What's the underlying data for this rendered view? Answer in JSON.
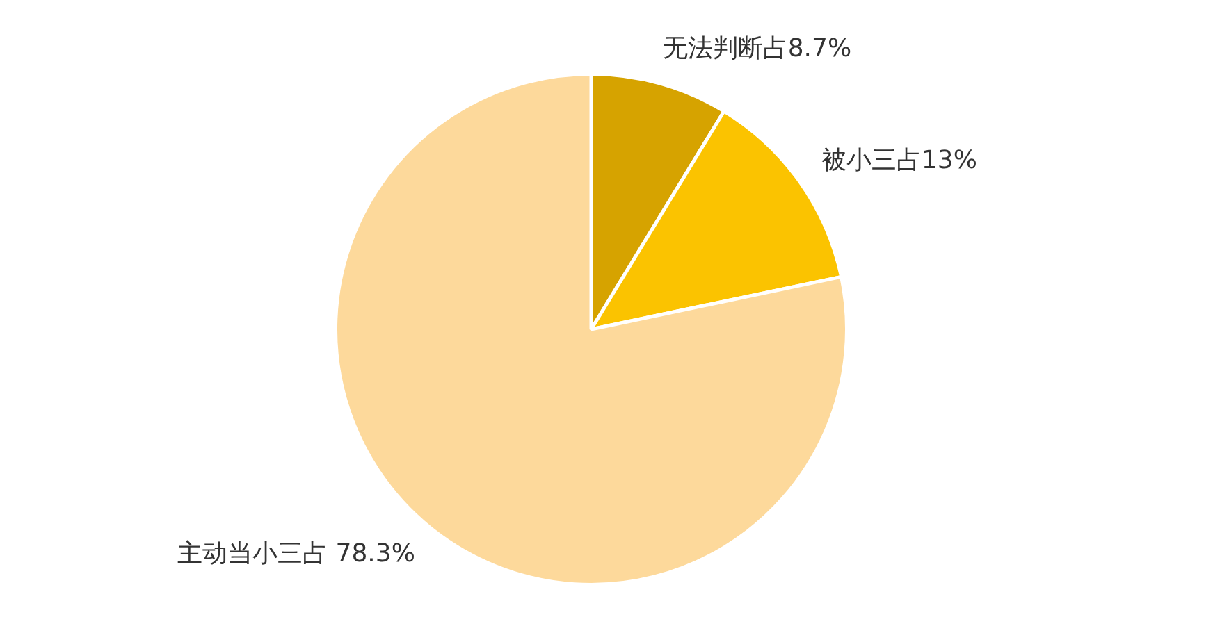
{
  "chart_data": {
    "type": "pie",
    "categories": [
      "无法判断占",
      "被小三占",
      "主动当小三占"
    ],
    "values": [
      8.7,
      13,
      78.3
    ],
    "value_labels": [
      "8.7%",
      "13%",
      "78.3%"
    ],
    "colors": [
      "#d6a300",
      "#fbc300",
      "#fdd99b"
    ]
  }
}
